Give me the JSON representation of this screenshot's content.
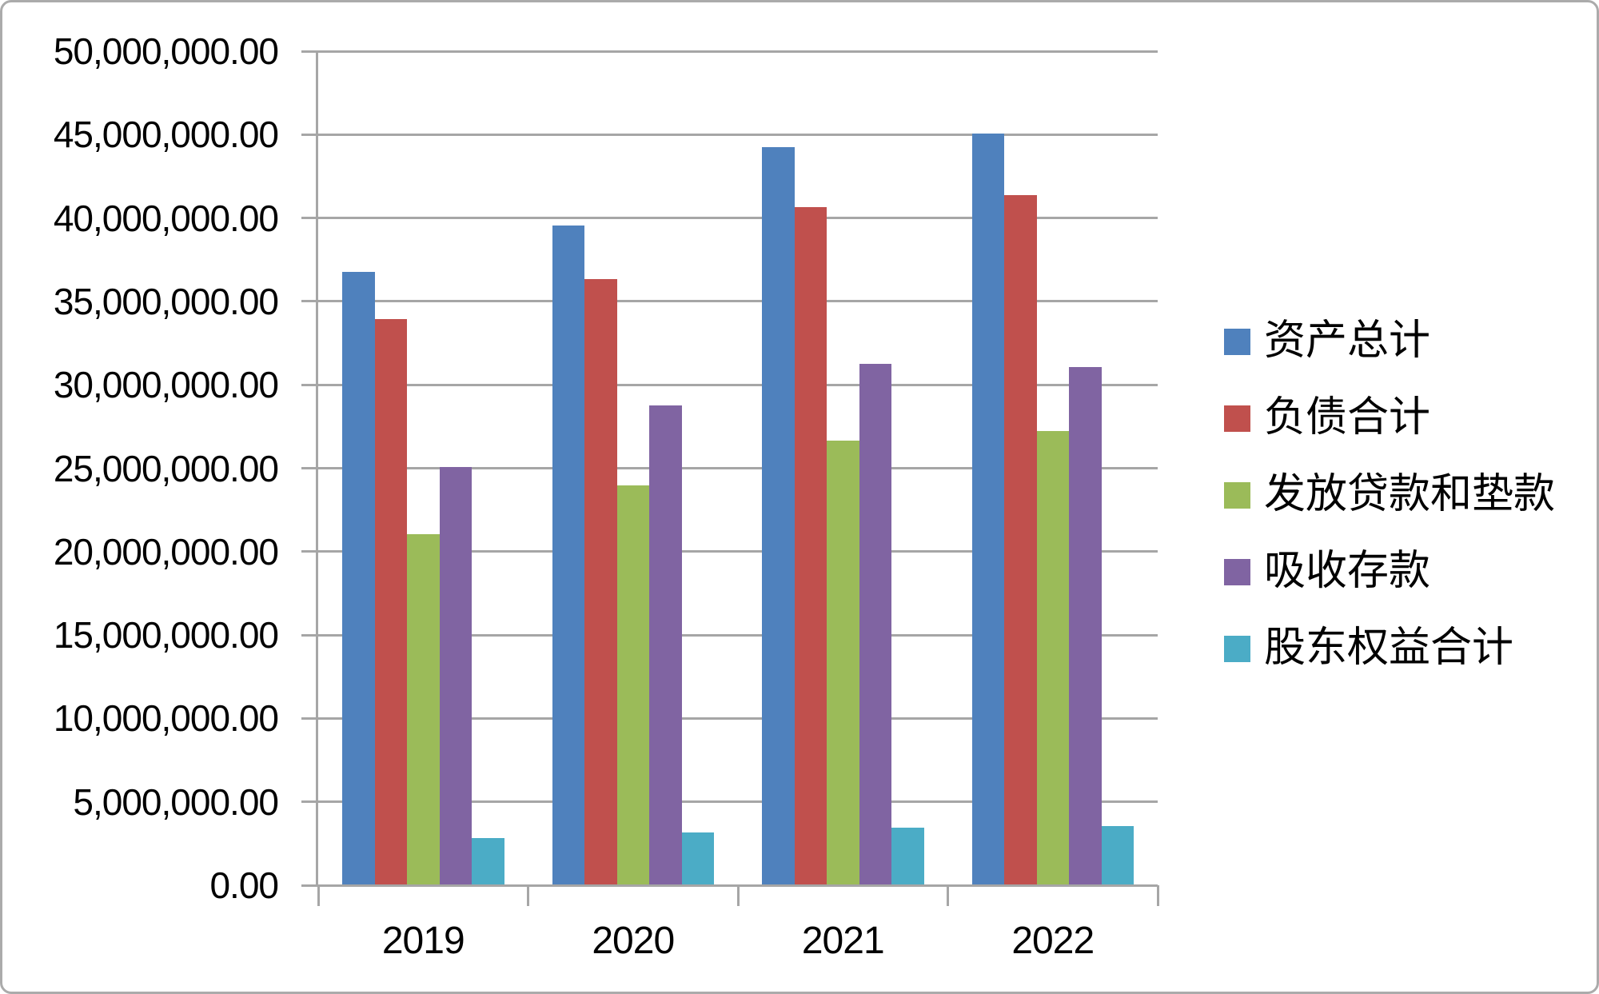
{
  "chart_data": {
    "type": "bar",
    "title": "",
    "categories": [
      "2019",
      "2020",
      "2021",
      "2022"
    ],
    "series": [
      {
        "name": "资产总计",
        "color": "#4F81BD",
        "values": [
          36700000,
          39500000,
          44200000,
          45000000
        ]
      },
      {
        "name": "负债合计",
        "color": "#C0504D",
        "values": [
          33900000,
          36300000,
          40600000,
          41300000
        ]
      },
      {
        "name": "发放贷款和垫款",
        "color": "#9BBB59",
        "values": [
          21000000,
          23900000,
          26600000,
          27200000
        ]
      },
      {
        "name": "吸收存款",
        "color": "#8064A2",
        "values": [
          25000000,
          28700000,
          31200000,
          31000000
        ]
      },
      {
        "name": "股东权益合计",
        "color": "#4BACC6",
        "values": [
          2800000,
          3100000,
          3400000,
          3500000
        ]
      }
    ],
    "xlabel": "",
    "ylabel": "",
    "ylim": [
      0,
      50000000
    ],
    "y_tick_interval": 5000000,
    "y_tick_labels": [
      "50,000,000.00",
      "45,000,000.00",
      "40,000,000.00",
      "35,000,000.00",
      "30,000,000.00",
      "25,000,000.00",
      "20,000,000.00",
      "15,000,000.00",
      "10,000,000.00",
      "5,000,000.00",
      "0.00"
    ],
    "grid": true,
    "legend_position": "right",
    "styles": {
      "gridline_color": "#A6A6A6",
      "axis_color": "#A6A6A6",
      "text_color": "#000000",
      "background": "#FFFFFF",
      "frame_border_color": "#ABABAB"
    }
  }
}
